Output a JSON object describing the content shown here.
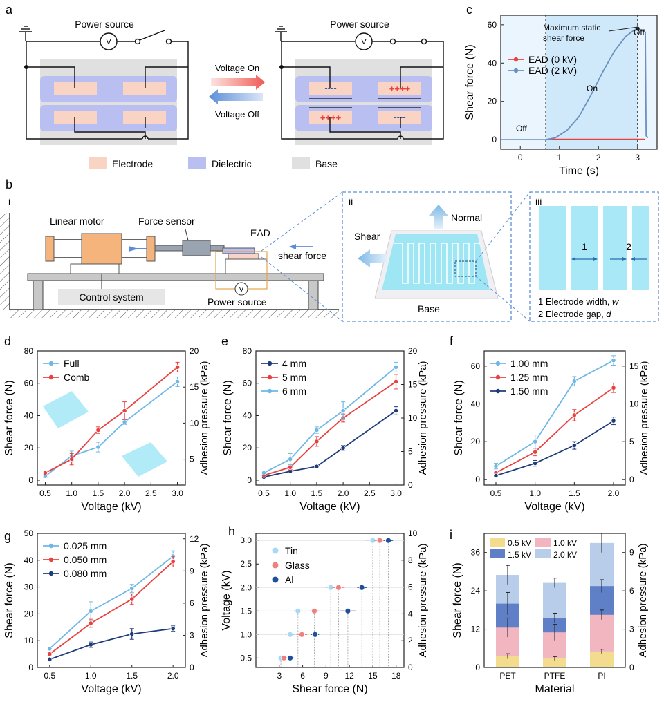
{
  "colors": {
    "electrode": "#f9d3c3",
    "dielectric": "#b9bff0",
    "base": "#e0e0e0",
    "red": "#e8413f",
    "blue_light": "#6fb8e6",
    "blue_mid": "#5b8ec8",
    "navy": "#1f3c7a",
    "cyan": "#a9e9f7",
    "pet_yellow": "#f4dc8e",
    "pink": "#f1b6c0",
    "steel": "#5f80c6",
    "pale_blue": "#b8cdea"
  },
  "panel_a": {
    "label": "a",
    "power_source": "Power source",
    "voltmeter": "V",
    "voltage_on": "Voltage On",
    "voltage_off": "Voltage Off",
    "neg_charge": "----",
    "pos_charge": "++++",
    "legend": [
      "Electrode",
      "Dielectric",
      "Base"
    ]
  },
  "panel_b": {
    "label": "b",
    "sub_i": "i",
    "sub_ii": "ii",
    "sub_iii": "iii",
    "linear_motor": "Linear motor",
    "force_sensor": "Force sensor",
    "ead": "EAD",
    "shear_force": "shear force",
    "control_system": "Control system",
    "power_source": "Power source",
    "voltmeter": "V",
    "shear": "Shear",
    "normal": "Normal",
    "base": "Base",
    "num1": "1",
    "num2": "2",
    "desc1": "1 Electrode width, ",
    "desc1_var": "w",
    "desc2": "2 Electrode gap, ",
    "desc2_var": "d"
  },
  "chart_data": [
    {
      "id": "c",
      "type": "line",
      "label": "c",
      "xlabel": "Time (s)",
      "ylabel": "Shear force (N)",
      "xlim": [
        -0.5,
        3.5
      ],
      "ylim": [
        -5,
        65
      ],
      "xticks": [
        0,
        1,
        2,
        3
      ],
      "yticks": [
        0,
        20,
        40,
        60
      ],
      "series": [
        {
          "name": "EAD (0 kV)",
          "color": "#e8413f",
          "x": [
            0.7,
            3.2
          ],
          "y": [
            0.2,
            0.2
          ]
        },
        {
          "name": "EAD (2 kV)",
          "color": "#6b8fc2",
          "x": [
            -0.5,
            0.65,
            0.9,
            1.2,
            1.5,
            1.8,
            2.1,
            2.4,
            2.7,
            2.9,
            3.0,
            3.15,
            3.2,
            3.22,
            3.27
          ],
          "y": [
            0,
            0,
            1,
            5,
            12,
            23,
            35,
            46,
            54,
            57,
            58,
            57,
            56,
            2,
            1
          ]
        }
      ],
      "annotations": {
        "off_left": "Off",
        "on": "On",
        "off_right": "Off",
        "max": "Maximum static\nshear force"
      },
      "vlines": [
        0.65,
        3.0
      ],
      "on_region": [
        0.65,
        3.0
      ]
    },
    {
      "id": "d",
      "type": "line",
      "label": "d",
      "xlabel": "Voltage (kV)",
      "ylabel": "Shear force (N)",
      "y2label": "Adhesion pressure (kPa)",
      "xlim": [
        0.35,
        3.15
      ],
      "ylim": [
        -3,
        80
      ],
      "xticks": [
        0.5,
        1.0,
        1.5,
        2.0,
        2.5,
        3.0
      ],
      "yticks": [
        0,
        20,
        40,
        60,
        80
      ],
      "y2ticks": [
        5,
        10,
        15,
        20
      ],
      "series": [
        {
          "name": "Full",
          "color": "#6fb8e6",
          "x": [
            0.5,
            1.0,
            1.5,
            2.0,
            3.0
          ],
          "y": [
            2.5,
            15,
            20.5,
            36,
            61
          ],
          "err": [
            1,
            3,
            3,
            1.5,
            3
          ]
        },
        {
          "name": "Comb",
          "color": "#e8413f",
          "x": [
            0.5,
            1.0,
            1.5,
            2.0,
            3.0
          ],
          "y": [
            4.5,
            13,
            31,
            43,
            70
          ],
          "err": [
            1,
            3.5,
            2,
            5.5,
            3
          ]
        }
      ]
    },
    {
      "id": "e",
      "type": "line",
      "label": "e",
      "xlabel": "Voltage (kV)",
      "ylabel": "Shear force (N)",
      "y2label": "Adhesion pressure (kPa)",
      "xlim": [
        0.35,
        3.15
      ],
      "ylim": [
        -3,
        80
      ],
      "xticks": [
        0.5,
        1.0,
        1.5,
        2.0,
        2.5,
        3.0
      ],
      "yticks": [
        0,
        20,
        40,
        60,
        80
      ],
      "y2ticks": [
        0,
        5,
        10,
        15,
        20
      ],
      "series": [
        {
          "name": "4 mm",
          "color": "#1f3c7a",
          "x": [
            0.5,
            1.0,
            1.5,
            2.0,
            3.0
          ],
          "y": [
            2,
            5.5,
            8.5,
            20,
            43
          ],
          "err": [
            0.5,
            0.8,
            1,
            1.5,
            2.5
          ]
        },
        {
          "name": "5 mm",
          "color": "#e8413f",
          "x": [
            0.5,
            1.0,
            1.5,
            2.0,
            3.0
          ],
          "y": [
            3,
            8,
            24,
            38.5,
            61
          ],
          "err": [
            0.8,
            1.5,
            3,
            2.5,
            4.5
          ]
        },
        {
          "name": "6 mm",
          "color": "#6fb8e6",
          "x": [
            0.5,
            1.0,
            1.5,
            2.0,
            3.0
          ],
          "y": [
            4.5,
            13,
            31,
            43,
            70
          ],
          "err": [
            1,
            3.5,
            2,
            5.5,
            3
          ]
        }
      ]
    },
    {
      "id": "f",
      "type": "line",
      "label": "f",
      "xlabel": "Voltage (kV)",
      "ylabel": "Shear force (N)",
      "y2label": "Adhesion pressure (kPa)",
      "xlim": [
        0.35,
        2.15
      ],
      "ylim": [
        -3,
        68
      ],
      "xticks": [
        0.5,
        1.0,
        1.5,
        2.0
      ],
      "yticks": [
        0,
        20,
        40,
        60
      ],
      "y2ticks": [
        0,
        5,
        10,
        15
      ],
      "series": [
        {
          "name": "1.00 mm",
          "color": "#6fb8e6",
          "x": [
            0.5,
            1.0,
            1.5,
            2.0
          ],
          "y": [
            7,
            20,
            52,
            63
          ],
          "err": [
            1.5,
            3.5,
            2.5,
            2.5
          ]
        },
        {
          "name": "1.25 mm",
          "color": "#e8413f",
          "x": [
            0.5,
            1.0,
            1.5,
            2.0
          ],
          "y": [
            3.5,
            14.5,
            34,
            48.5
          ],
          "err": [
            1,
            2,
            3,
            2.5
          ]
        },
        {
          "name": "1.50 mm",
          "color": "#1f3c7a",
          "x": [
            0.5,
            1.0,
            1.5,
            2.0
          ],
          "y": [
            2,
            8.5,
            18,
            31
          ],
          "err": [
            0.5,
            1.5,
            2,
            2
          ]
        }
      ]
    },
    {
      "id": "g",
      "type": "line",
      "label": "g",
      "xlabel": "Voltage (kV)",
      "ylabel": "Shear force (N)",
      "y2label": "Adhesion pressure (kPa)",
      "xlim": [
        0.35,
        2.15
      ],
      "ylim": [
        0,
        50
      ],
      "xticks": [
        0.5,
        1.0,
        1.5,
        2.0
      ],
      "yticks": [
        0,
        10,
        20,
        30,
        40,
        50
      ],
      "y2ticks": [
        0,
        3,
        6,
        9,
        12
      ],
      "series": [
        {
          "name": "0.025 mm",
          "color": "#6fb8e6",
          "x": [
            0.5,
            1.0,
            1.5,
            2.0
          ],
          "y": [
            7,
            21,
            29.5,
            41.5
          ],
          "err": [
            0.5,
            3.5,
            1.5,
            2
          ]
        },
        {
          "name": "0.050 mm",
          "color": "#e8413f",
          "x": [
            0.5,
            1.0,
            1.5,
            2.0
          ],
          "y": [
            5,
            16.5,
            25.5,
            39.5
          ],
          "err": [
            0.5,
            1.5,
            2,
            2
          ]
        },
        {
          "name": "0.080 mm",
          "color": "#1f3c7a",
          "x": [
            0.5,
            1.0,
            1.5,
            2.0
          ],
          "y": [
            3,
            8.5,
            12.5,
            14.5
          ],
          "err": [
            0.5,
            1,
            2,
            1
          ]
        }
      ]
    },
    {
      "id": "h",
      "type": "scatter",
      "label": "h",
      "xlabel": "Shear force (N)",
      "ylabel": "Voltage (kV)",
      "y2label": "Adhesion pressure (kPa)",
      "xlim": [
        0,
        19
      ],
      "ylim": [
        0.3,
        3.15
      ],
      "xticks": [
        3,
        6,
        9,
        12,
        15,
        18
      ],
      "yticks": [
        0.5,
        1.0,
        1.5,
        2.0,
        2.5,
        3.0
      ],
      "y2ticks": [
        0,
        2,
        4,
        6,
        8,
        10
      ],
      "series": [
        {
          "name": "Tin",
          "color": "#a9d8f5",
          "voltages": [
            0.5,
            1.0,
            1.5,
            2.0,
            3.0
          ],
          "x": [
            3.2,
            4.4,
            5.4,
            9.6,
            15.0
          ],
          "err": [
            0.5,
            0.6,
            0.6,
            0.7,
            0.9
          ]
        },
        {
          "name": "Glass",
          "color": "#f08080",
          "voltages": [
            0.5,
            1.0,
            1.5,
            2.0,
            3.0
          ],
          "x": [
            3.6,
            5.9,
            7.5,
            10.6,
            15.9
          ],
          "err": [
            0.4,
            0.7,
            0.6,
            0.8,
            0.7
          ]
        },
        {
          "name": "Al",
          "color": "#1f4f9a",
          "voltages": [
            0.5,
            1.0,
            1.5,
            2.0,
            3.0
          ],
          "x": [
            4.4,
            7.6,
            11.8,
            13.6,
            17.0
          ],
          "err": [
            0.5,
            0.5,
            1.0,
            0.6,
            0.6
          ]
        }
      ]
    },
    {
      "id": "i",
      "type": "bar",
      "label": "i",
      "xlabel": "Material",
      "ylabel": "Shear force (N)",
      "y2label": "Adhesion pressure (kPa)",
      "ylim": [
        0,
        42
      ],
      "yticks": [
        0,
        12,
        24,
        36
      ],
      "y2ticks": [
        0,
        3,
        6,
        9
      ],
      "categories": [
        "PET",
        "PTFE",
        "PI"
      ],
      "series": [
        {
          "name": "2.0 kV",
          "color": "#b8cdea",
          "values": [
            29,
            26.5,
            39
          ],
          "err": [
            3,
            1.5,
            3
          ]
        },
        {
          "name": "1.5 kV",
          "color": "#5f80c6",
          "values": [
            20,
            15.5,
            25.5
          ],
          "err": [
            3.5,
            1.5,
            2
          ]
        },
        {
          "name": "1.0 kV",
          "color": "#f1b6c0",
          "values": [
            12.5,
            11,
            16.5
          ],
          "err": [
            3,
            2.5,
            1.5
          ]
        },
        {
          "name": "0.5 kV",
          "color": "#f4dc8e",
          "values": [
            3.5,
            2.8,
            5
          ],
          "err": [
            0.8,
            0.6,
            0.7
          ]
        }
      ],
      "legend_order": [
        "0.5 kV",
        "1.0 kV",
        "1.5 kV",
        "2.0 kV"
      ]
    }
  ]
}
